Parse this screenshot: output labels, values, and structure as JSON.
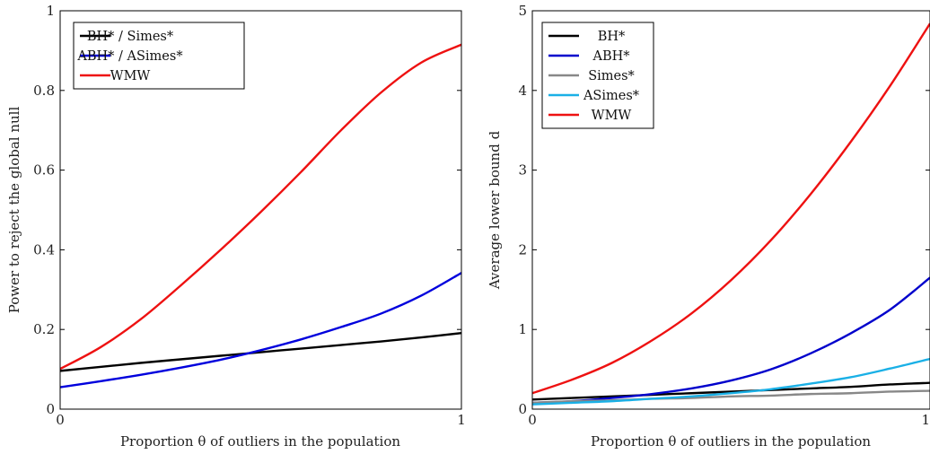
{
  "chart_data": [
    {
      "type": "line",
      "title": "",
      "xlabel": "Proportion θ of outliers in the population",
      "ylabel": "Power to reject the global null",
      "xlim": [
        0,
        1
      ],
      "ylim": [
        0,
        1
      ],
      "xticks": [
        0,
        1
      ],
      "xtick_labels": [
        "0",
        "1"
      ],
      "yticks": [
        0,
        0.2,
        0.4,
        0.6,
        0.8,
        1
      ],
      "ytick_labels": [
        "0",
        "0.2",
        "0.4",
        "0.6",
        "0.8",
        "1"
      ],
      "grid": false,
      "legend_position": "top-left",
      "x": [
        0,
        0.1,
        0.2,
        0.3,
        0.4,
        0.5,
        0.6,
        0.7,
        0.8,
        0.9,
        1.0
      ],
      "series": [
        {
          "name": "BH* / Simes*",
          "color": "#000000",
          "values": [
            0.096,
            0.106,
            0.116,
            0.125,
            0.134,
            0.143,
            0.152,
            0.161,
            0.17,
            0.18,
            0.191
          ]
        },
        {
          "name": "ABH* / ASimes*",
          "color": "#0000dd",
          "values": [
            0.055,
            0.07,
            0.086,
            0.104,
            0.124,
            0.148,
            0.175,
            0.206,
            0.24,
            0.285,
            0.342
          ]
        },
        {
          "name": "WMW",
          "color": "#ee1111",
          "values": [
            0.101,
            0.155,
            0.225,
            0.31,
            0.4,
            0.495,
            0.595,
            0.7,
            0.795,
            0.87,
            0.915
          ]
        }
      ]
    },
    {
      "type": "line",
      "title": "",
      "xlabel": "Proportion θ of outliers in the population",
      "ylabel": "Average lower bound d",
      "xlim": [
        0,
        1
      ],
      "ylim": [
        0,
        5
      ],
      "xticks": [
        0,
        1
      ],
      "xtick_labels": [
        "0",
        "1"
      ],
      "yticks": [
        0,
        1,
        2,
        3,
        4,
        5
      ],
      "ytick_labels": [
        "0",
        "1",
        "2",
        "3",
        "4",
        "5"
      ],
      "grid": false,
      "legend_position": "top-left",
      "x": [
        0,
        0.1,
        0.2,
        0.3,
        0.4,
        0.5,
        0.6,
        0.7,
        0.8,
        0.9,
        1.0
      ],
      "series": [
        {
          "name": "BH*",
          "color": "#000000",
          "values": [
            0.12,
            0.14,
            0.16,
            0.18,
            0.2,
            0.22,
            0.24,
            0.26,
            0.28,
            0.31,
            0.33
          ]
        },
        {
          "name": "ABH*",
          "color": "#0000cc",
          "values": [
            0.08,
            0.1,
            0.14,
            0.19,
            0.26,
            0.36,
            0.5,
            0.7,
            0.95,
            1.25,
            1.65
          ]
        },
        {
          "name": "Simes*",
          "color": "#888888",
          "values": [
            0.08,
            0.1,
            0.11,
            0.13,
            0.14,
            0.16,
            0.17,
            0.19,
            0.2,
            0.22,
            0.23
          ]
        },
        {
          "name": "ASimes*",
          "color": "#1ab0e6",
          "values": [
            0.06,
            0.08,
            0.1,
            0.13,
            0.16,
            0.2,
            0.25,
            0.32,
            0.4,
            0.51,
            0.63
          ]
        },
        {
          "name": "WMW",
          "color": "#ee1111",
          "values": [
            0.2,
            0.37,
            0.58,
            0.86,
            1.2,
            1.62,
            2.12,
            2.7,
            3.35,
            4.06,
            4.84
          ]
        }
      ]
    }
  ]
}
